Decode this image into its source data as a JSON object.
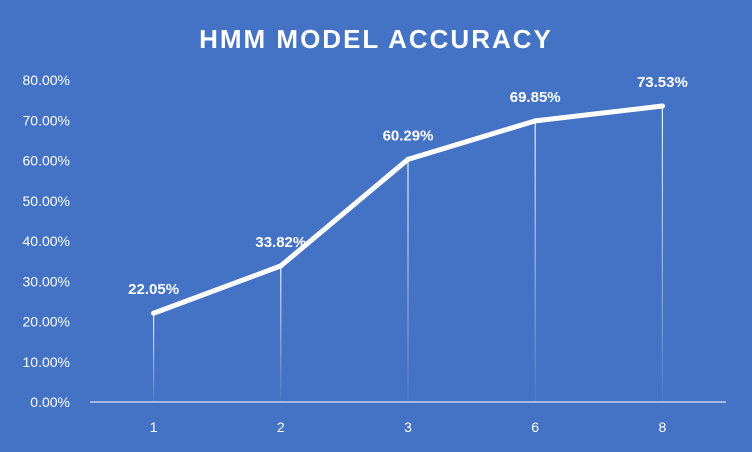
{
  "chart_data": {
    "type": "line",
    "title": "HMM MODEL ACCURACY",
    "xlabel": "",
    "ylabel": "",
    "categories": [
      "1",
      "2",
      "3",
      "6",
      "8"
    ],
    "series": [
      {
        "values": [
          22.05,
          33.82,
          60.29,
          69.85,
          73.53
        ]
      }
    ],
    "data_labels": [
      "22.05%",
      "33.82%",
      "60.29%",
      "69.85%",
      "73.53%"
    ],
    "ylim": [
      0,
      80
    ],
    "y_ticks": [
      "0.00%",
      "10.00%",
      "20.00%",
      "30.00%",
      "40.00%",
      "50.00%",
      "60.00%",
      "70.00%",
      "80.00%"
    ],
    "grid": false,
    "drop_lines": true,
    "colors": {
      "background": "#4472C4",
      "line": "#ffffff",
      "text": "#ffffff"
    }
  }
}
